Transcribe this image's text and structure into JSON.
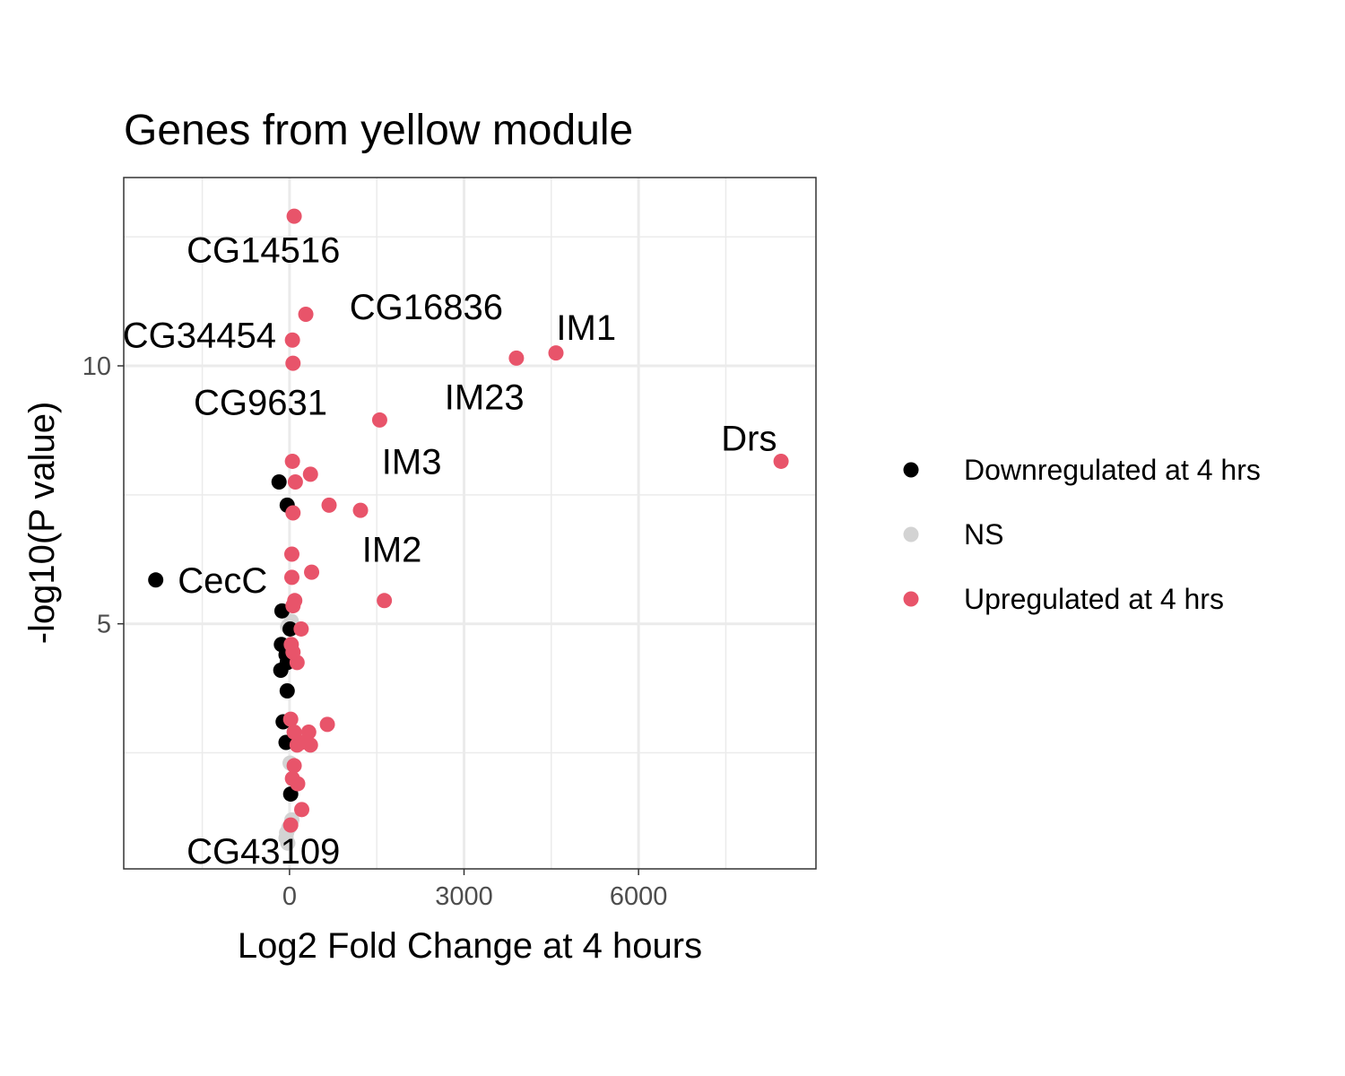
{
  "chart_data": {
    "type": "scatter",
    "title": "Genes from yellow module",
    "xlabel": "Log2 Fold Change at 4 hours",
    "ylabel": "-log10(P value)",
    "xlim": [
      -2850,
      9050
    ],
    "ylim": [
      0.25,
      13.65
    ],
    "x_ticks": [
      0,
      3000,
      6000
    ],
    "y_ticks": [
      5,
      10
    ],
    "grid": true,
    "legend_position": "right",
    "colors": {
      "Downregulated at 4 hrs": "#000000",
      "NS": "#d3d3d3",
      "Upregulated at 4 hrs": "#e8546a"
    },
    "series": [
      {
        "name": "Downregulated at 4 hrs",
        "points": [
          {
            "x": -2300,
            "y": 5.85
          },
          {
            "x": -180,
            "y": 7.75
          },
          {
            "x": -40,
            "y": 7.3
          },
          {
            "x": -130,
            "y": 5.25
          },
          {
            "x": 10,
            "y": 4.9
          },
          {
            "x": -140,
            "y": 4.6
          },
          {
            "x": -60,
            "y": 4.4
          },
          {
            "x": -40,
            "y": 4.25
          },
          {
            "x": -150,
            "y": 4.1
          },
          {
            "x": -40,
            "y": 3.7
          },
          {
            "x": -110,
            "y": 3.1
          },
          {
            "x": -60,
            "y": 2.7
          },
          {
            "x": 20,
            "y": 1.7
          }
        ]
      },
      {
        "name": "NS",
        "points": [
          {
            "x": 30,
            "y": 5.05
          },
          {
            "x": -30,
            "y": 4.95
          },
          {
            "x": 10,
            "y": 2.3
          },
          {
            "x": 40,
            "y": 1.2
          },
          {
            "x": -10,
            "y": 1.05
          },
          {
            "x": -50,
            "y": 0.95
          },
          {
            "x": -60,
            "y": 0.85
          },
          {
            "x": -30,
            "y": 0.75
          }
        ]
      },
      {
        "name": "Upregulated at 4 hrs",
        "points": [
          {
            "x": 80,
            "y": 12.9
          },
          {
            "x": 280,
            "y": 11.0
          },
          {
            "x": 50,
            "y": 10.5
          },
          {
            "x": 60,
            "y": 10.05
          },
          {
            "x": 4580,
            "y": 10.25
          },
          {
            "x": 3900,
            "y": 10.15
          },
          {
            "x": 1550,
            "y": 8.95
          },
          {
            "x": 8450,
            "y": 8.15
          },
          {
            "x": 50,
            "y": 8.15
          },
          {
            "x": 360,
            "y": 7.9
          },
          {
            "x": 100,
            "y": 7.75
          },
          {
            "x": 680,
            "y": 7.3
          },
          {
            "x": 1220,
            "y": 7.2
          },
          {
            "x": 60,
            "y": 7.15
          },
          {
            "x": 40,
            "y": 6.35
          },
          {
            "x": 380,
            "y": 6.0
          },
          {
            "x": 40,
            "y": 5.9
          },
          {
            "x": 90,
            "y": 5.45
          },
          {
            "x": 1630,
            "y": 5.45
          },
          {
            "x": 60,
            "y": 5.35
          },
          {
            "x": 200,
            "y": 4.9
          },
          {
            "x": 30,
            "y": 4.6
          },
          {
            "x": 60,
            "y": 4.45
          },
          {
            "x": 130,
            "y": 4.25
          },
          {
            "x": 20,
            "y": 3.15
          },
          {
            "x": 650,
            "y": 3.05
          },
          {
            "x": 80,
            "y": 2.9
          },
          {
            "x": 330,
            "y": 2.9
          },
          {
            "x": 200,
            "y": 2.7
          },
          {
            "x": 360,
            "y": 2.65
          },
          {
            "x": 130,
            "y": 2.65
          },
          {
            "x": 80,
            "y": 2.25
          },
          {
            "x": 50,
            "y": 2.0
          },
          {
            "x": 140,
            "y": 1.9
          },
          {
            "x": 210,
            "y": 1.4
          },
          {
            "x": 20,
            "y": 1.1
          }
        ]
      }
    ],
    "labels": [
      {
        "text": "CG14516",
        "x": -450,
        "y": 12.25
      },
      {
        "text": "CG16836",
        "x": 2350,
        "y": 11.15
      },
      {
        "text": "IM1",
        "x": 5100,
        "y": 10.75
      },
      {
        "text": "CG34454",
        "x": -1550,
        "y": 10.6
      },
      {
        "text": "IM23",
        "x": 3350,
        "y": 9.4
      },
      {
        "text": "CG9631",
        "x": -500,
        "y": 9.3
      },
      {
        "text": "Drs",
        "x": 7900,
        "y": 8.6
      },
      {
        "text": "IM3",
        "x": 2100,
        "y": 8.15
      },
      {
        "text": "IM2",
        "x": 1760,
        "y": 6.45
      },
      {
        "text": "CecC",
        "x": -1150,
        "y": 5.85
      },
      {
        "text": "CG43109",
        "x": -450,
        "y": 0.6
      }
    ]
  }
}
